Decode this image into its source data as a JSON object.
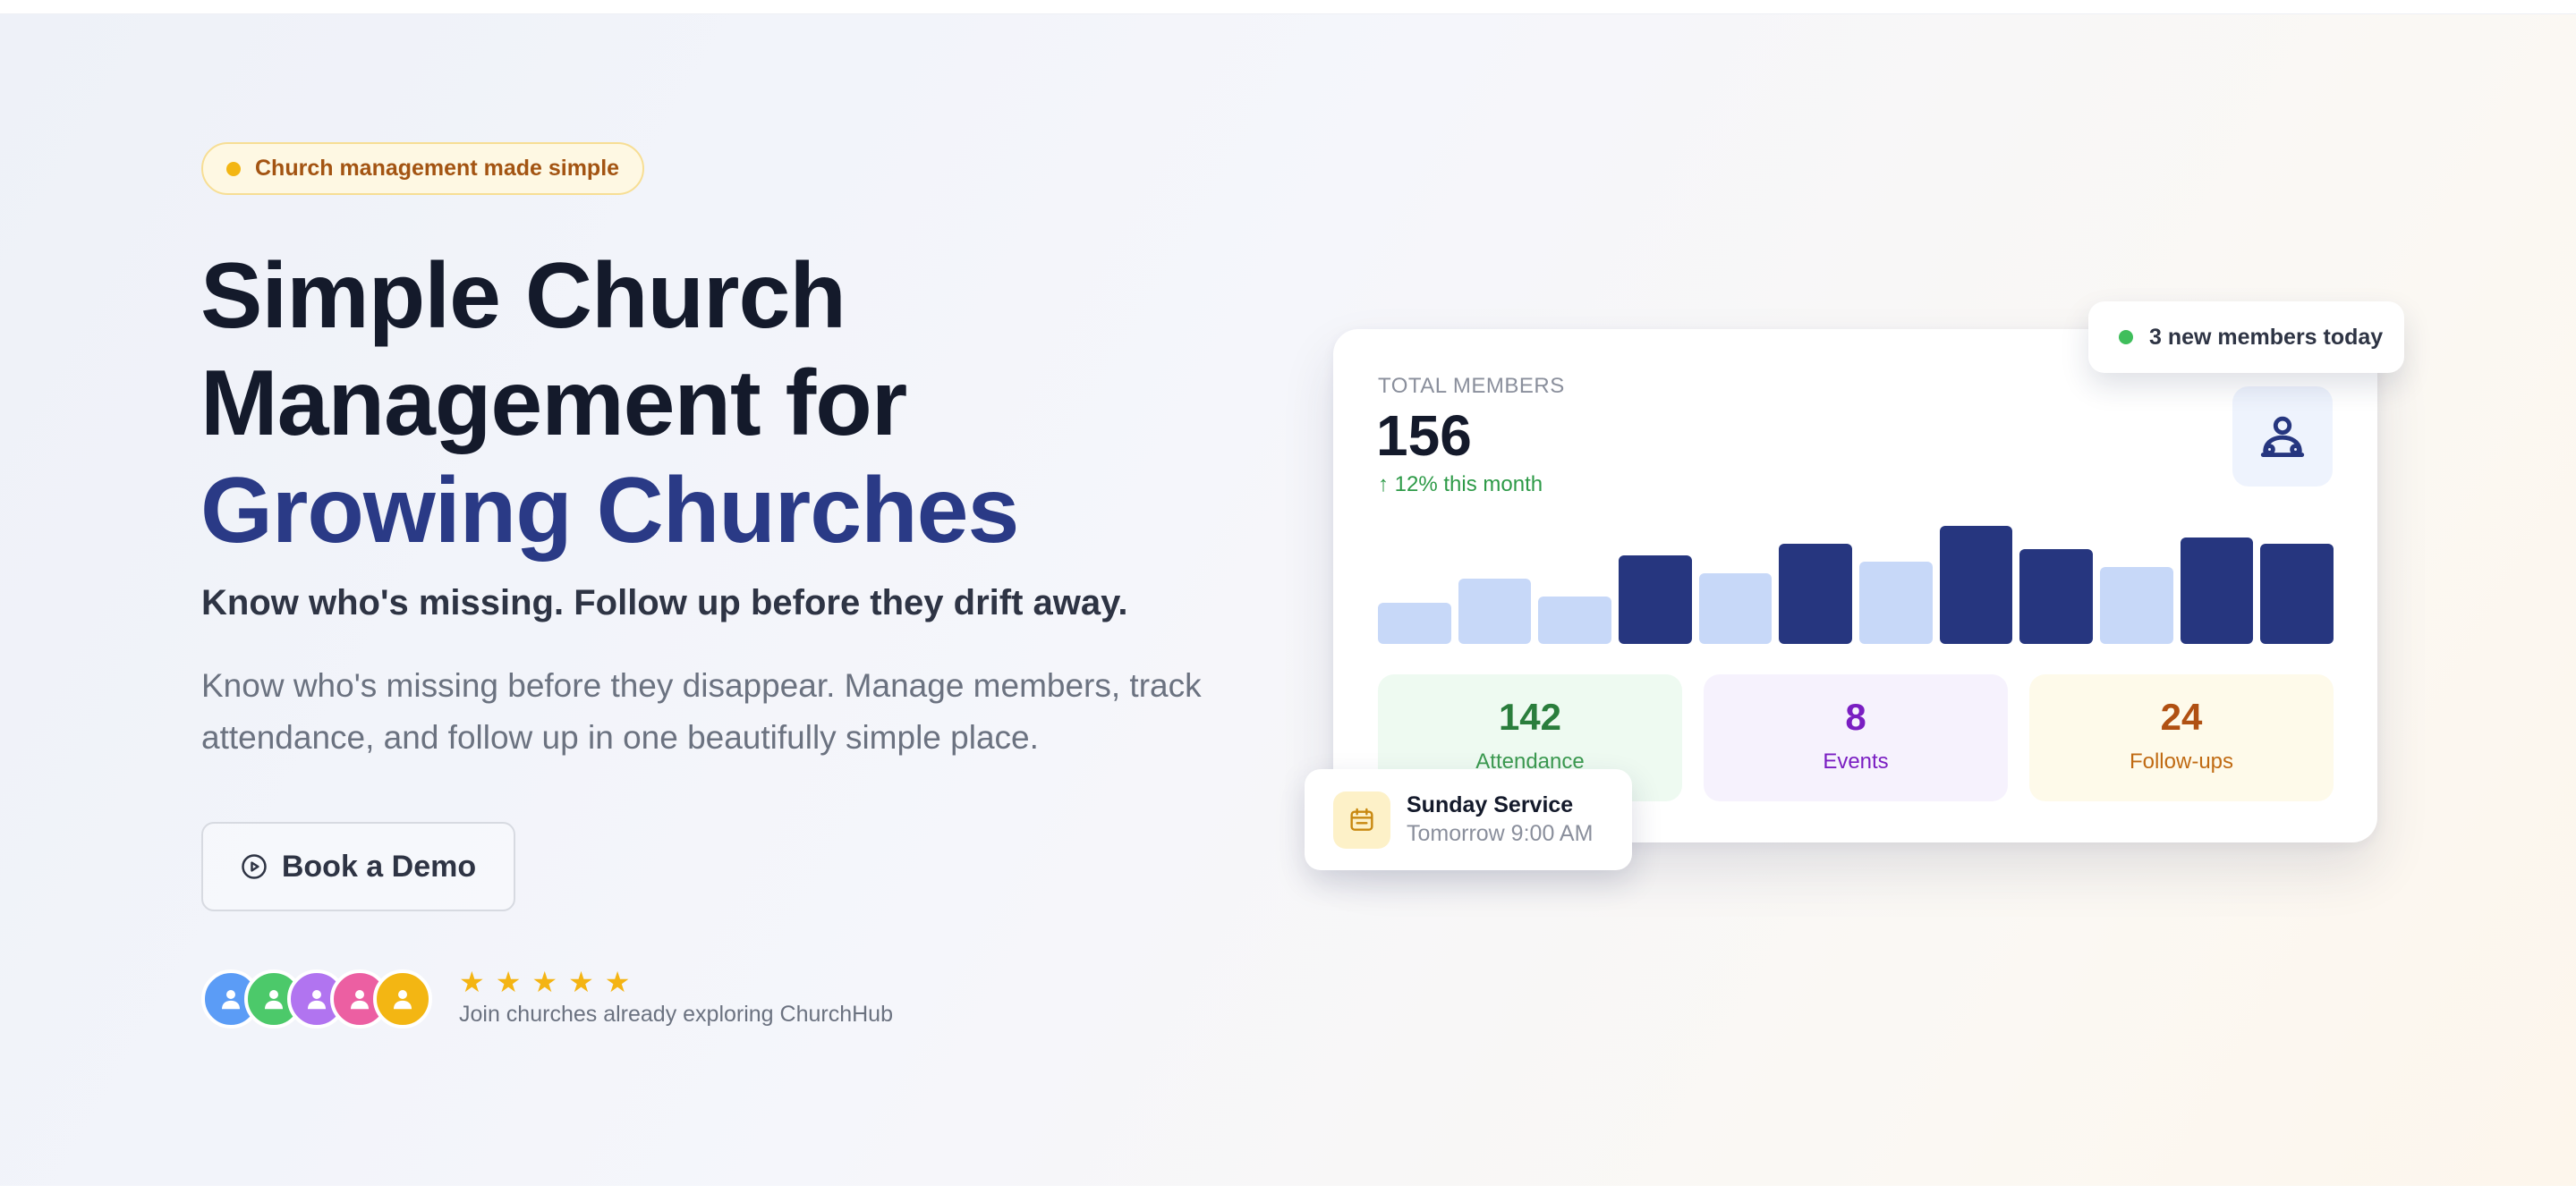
{
  "badge": {
    "label": "Church management made simple"
  },
  "headline": {
    "line1": "Simple Church",
    "line2": "Management for",
    "line3": "Growing Churches"
  },
  "subheadline": "Know who's missing. Follow up before they drift away.",
  "description": "Know who's missing before they disappear. Manage members, track attendance, and follow up in one beautifully simple place.",
  "cta": {
    "demo_label": "Book a Demo",
    "icon": "play-circle-icon"
  },
  "social_proof": {
    "rating_stars": 5,
    "text": "Join churches already exploring ChurchHub",
    "avatar_colors": [
      "#5b9cf6",
      "#4cc96a",
      "#b174f0",
      "#ec5fa2",
      "#f3b613"
    ]
  },
  "dashboard": {
    "label": "TOTAL MEMBERS",
    "value": "156",
    "growth": "↑ 12% this month",
    "icon": "members-icon",
    "weekly_bars": [
      {
        "level": 0.35,
        "highlight": false
      },
      {
        "level": 0.55,
        "highlight": false
      },
      {
        "level": 0.4,
        "highlight": false
      },
      {
        "level": 0.75,
        "highlight": true
      },
      {
        "level": 0.6,
        "highlight": false
      },
      {
        "level": 0.85,
        "highlight": true
      },
      {
        "level": 0.7,
        "highlight": false
      },
      {
        "level": 1.0,
        "highlight": true
      },
      {
        "level": 0.8,
        "highlight": true
      },
      {
        "level": 0.65,
        "highlight": false
      },
      {
        "level": 0.9,
        "highlight": true
      },
      {
        "level": 0.85,
        "highlight": true
      }
    ],
    "bar_colors": {
      "highlight": "#26367f",
      "normal": "#c7d8f8"
    },
    "stats": [
      {
        "value": "142",
        "label": "Attendance"
      },
      {
        "value": "8",
        "label": "Events"
      },
      {
        "value": "24",
        "label": "Follow-ups"
      }
    ]
  },
  "notification": {
    "text": "3 new members today"
  },
  "event": {
    "title": "Sunday Service",
    "time": "Tomorrow 9:00 AM",
    "icon": "calendar-icon"
  }
}
